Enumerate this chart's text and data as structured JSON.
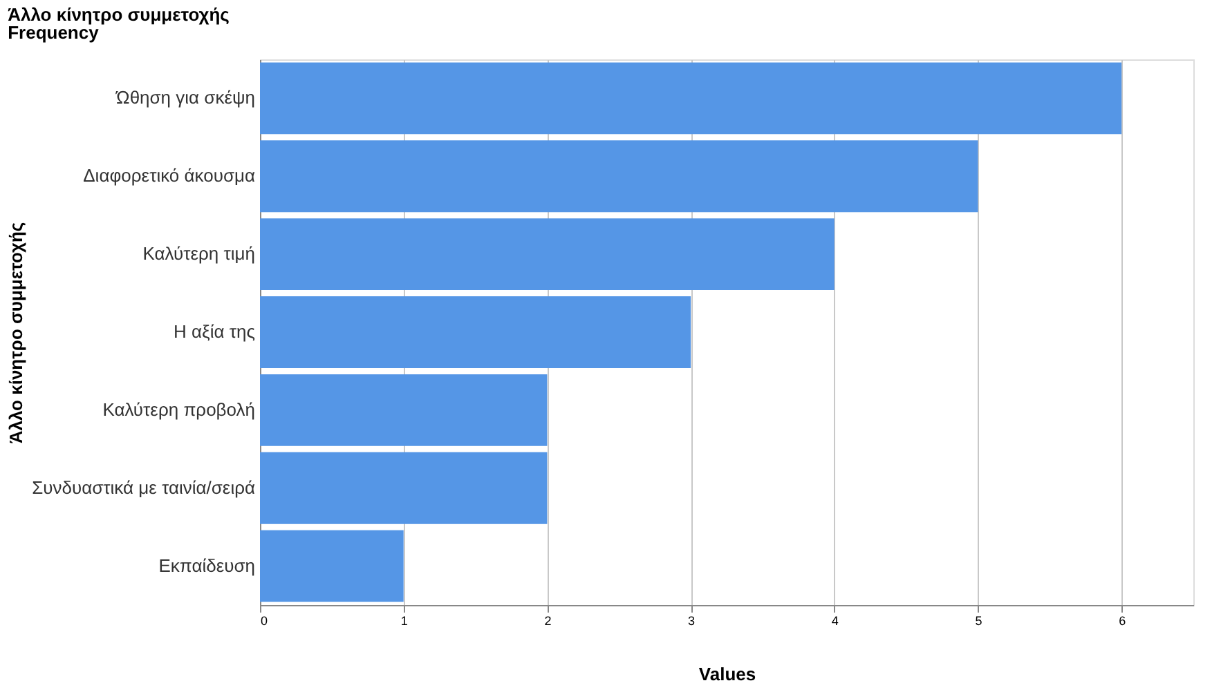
{
  "chart_data": {
    "type": "bar",
    "orientation": "horizontal",
    "title": "Άλλο κίνητρο συμμετοχής",
    "subtitle": "Frequency",
    "xlabel": "Values",
    "ylabel": "Άλλο κίνητρο συμμετοχής",
    "categories": [
      "Ώθηση για σκέψη",
      "Διαφορετικό άκουσμα",
      "Καλύτερη τιμή",
      "Η αξία της",
      "Καλύτερη προβολή",
      "Συνδυαστικά με ταινία/σειρά",
      "Εκπαίδευση"
    ],
    "values": [
      6,
      5,
      4,
      3,
      2,
      2,
      1
    ],
    "color": "#5596e6",
    "xlim": [
      0,
      6.5
    ],
    "xticks": [
      0,
      1,
      2,
      3,
      4,
      5,
      6
    ],
    "grid": "x"
  }
}
